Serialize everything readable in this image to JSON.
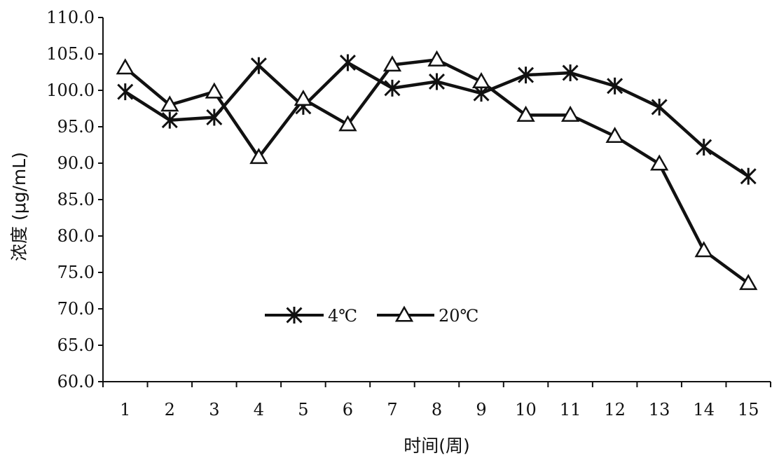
{
  "chart_data": {
    "type": "line",
    "title": "",
    "xlabel": "时间(周)",
    "ylabel": "浓度 (μg/mL)",
    "categories": [
      "1",
      "2",
      "3",
      "4",
      "5",
      "6",
      "7",
      "8",
      "9",
      "10",
      "11",
      "12",
      "13",
      "14",
      "15"
    ],
    "y_ticks": [
      "60.0",
      "65.0",
      "70.0",
      "75.0",
      "80.0",
      "85.0",
      "90.0",
      "95.0",
      "100.0",
      "105.0",
      "110.0"
    ],
    "ylim": [
      60,
      110
    ],
    "grid": false,
    "legend_placement": "lower-left inside plot",
    "series": [
      {
        "name": "4℃",
        "marker": "asterisk",
        "color": "#111111",
        "values": [
          99.8,
          95.9,
          96.3,
          103.4,
          97.8,
          103.8,
          100.3,
          101.2,
          99.6,
          102.1,
          102.4,
          100.6,
          97.7,
          92.2,
          88.2
        ]
      },
      {
        "name": "20℃",
        "marker": "triangle",
        "color": "#111111",
        "values": [
          103.1,
          98.0,
          99.8,
          90.8,
          98.8,
          95.3,
          103.5,
          104.2,
          101.2,
          96.6,
          96.6,
          93.7,
          89.9,
          78.0,
          73.5
        ]
      }
    ]
  }
}
